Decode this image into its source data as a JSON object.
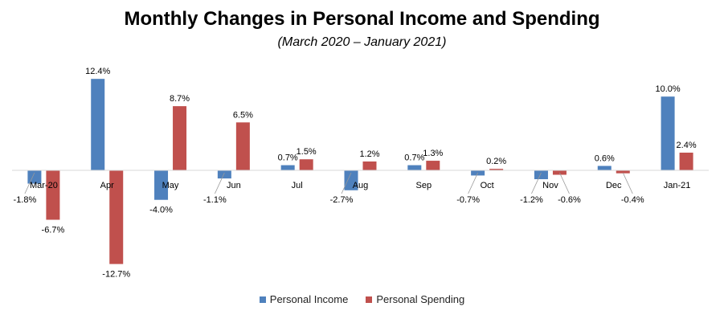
{
  "chart_data": {
    "type": "bar",
    "title": "Monthly Changes in Personal Income and Spending",
    "subtitle": "(March 2020 – January 2021)",
    "categories": [
      "Mar-20",
      "Apr",
      "May",
      "Jun",
      "Jul",
      "Aug",
      "Sep",
      "Oct",
      "Nov",
      "Dec",
      "Jan-21"
    ],
    "series": [
      {
        "name": "Personal Income",
        "color": "#4f81bd",
        "values": [
          -1.8,
          12.4,
          -4.0,
          -1.1,
          0.7,
          -2.7,
          0.7,
          -0.7,
          -1.2,
          0.6,
          10.0
        ],
        "labels": [
          "-1.8%",
          "12.4%",
          "-4.0%",
          "-1.1%",
          "0.7%",
          "-2.7%",
          "0.7%",
          "-0.7%",
          "-1.2%",
          "0.6%",
          "10.0%"
        ]
      },
      {
        "name": "Personal Spending",
        "color": "#c0504d",
        "values": [
          -6.7,
          -12.7,
          8.7,
          6.5,
          1.5,
          1.2,
          1.3,
          0.2,
          -0.6,
          -0.4,
          2.4
        ],
        "labels": [
          "-6.7%",
          "-12.7%",
          "8.7%",
          "6.5%",
          "1.5%",
          "1.2%",
          "1.3%",
          "0.2%",
          "-0.6%",
          "-0.4%",
          "2.4%"
        ]
      }
    ],
    "xlabel": "",
    "ylabel": "",
    "ylim": [
      -13.5,
      13.5
    ],
    "grid": false,
    "legend_position": "bottom"
  }
}
